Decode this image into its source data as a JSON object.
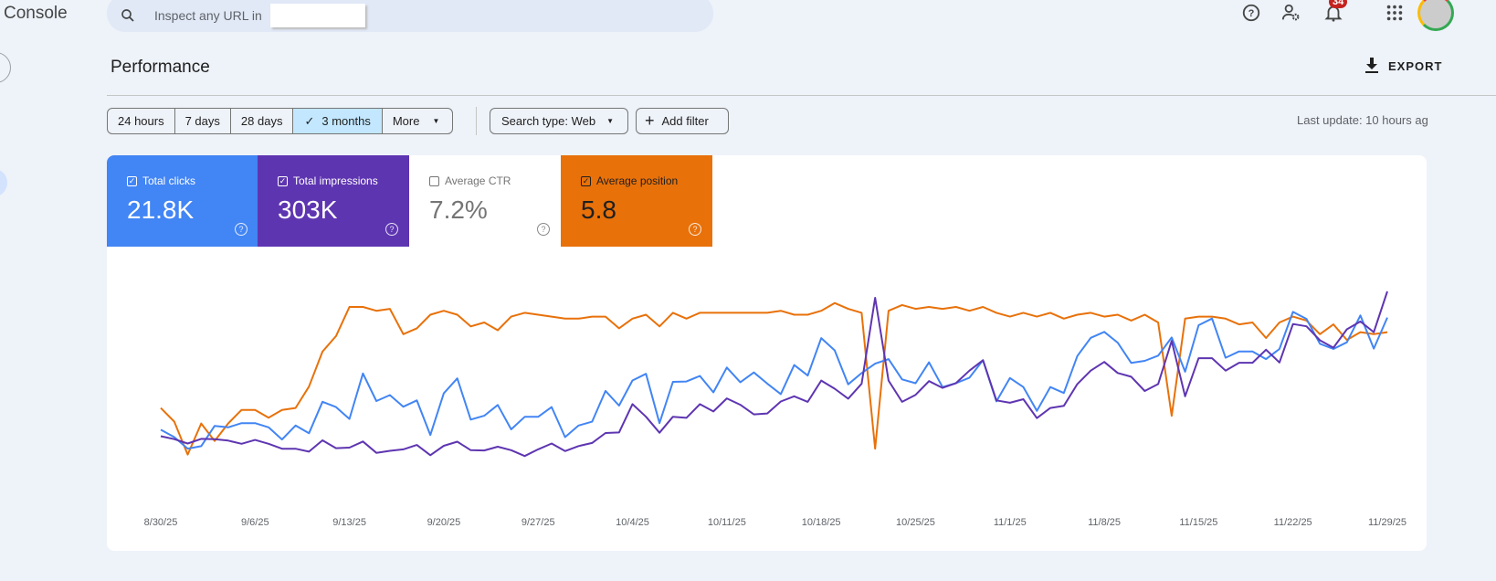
{
  "app": {
    "title": "Console"
  },
  "search": {
    "placeholder": "Inspect any URL in"
  },
  "header_icons": {
    "help": "help-icon",
    "users": "manage-users-icon",
    "notifications": "bell-icon",
    "notification_count": "34",
    "apps": "apps-grid-icon"
  },
  "page": {
    "title": "Performance",
    "export_label": "EXPORT"
  },
  "filters": {
    "ranges": [
      {
        "label": "24 hours",
        "selected": false
      },
      {
        "label": "7 days",
        "selected": false
      },
      {
        "label": "28 days",
        "selected": false
      },
      {
        "label": "3 months",
        "selected": true
      },
      {
        "label": "More",
        "selected": false
      }
    ],
    "search_type": "Search type: Web",
    "add_filter": "Add filter",
    "last_update": "Last update: 10 hours ag"
  },
  "metrics": [
    {
      "label": "Total clicks",
      "value": "21.8K",
      "checked": true,
      "color": "#4285f4"
    },
    {
      "label": "Total impressions",
      "value": "303K",
      "checked": true,
      "color": "#5e35b1"
    },
    {
      "label": "Average CTR",
      "value": "7.2%",
      "checked": false,
      "color": "#ffffff"
    },
    {
      "label": "Average position",
      "value": "5.8",
      "checked": true,
      "color": "#e8710a"
    }
  ],
  "chart_data": {
    "type": "line",
    "x_range": [
      "8/30/25",
      "11/29/25"
    ],
    "tick_labels": [
      "8/30/25",
      "9/6/25",
      "9/13/25",
      "9/20/25",
      "9/27/25",
      "10/4/25",
      "10/11/25",
      "10/18/25",
      "10/25/25",
      "11/1/25",
      "11/8/25",
      "11/15/25",
      "11/22/25",
      "11/29/25"
    ],
    "grid": false,
    "position_axis_inverted": true,
    "series": [
      {
        "key": "clicks",
        "color": "#4285f4",
        "values": [
          96,
          75,
          42,
          49,
          107,
          103,
          115,
          115,
          103,
          68,
          108,
          86,
          176,
          161,
          127,
          257,
          178,
          195,
          162,
          180,
          81,
          200,
          243,
          125,
          136,
          167,
          97,
          133,
          133,
          161,
          75,
          108,
          119,
          207,
          165,
          237,
          256,
          115,
          233,
          234,
          250,
          203,
          274,
          232,
          260,
          228,
          198,
          281,
          251,
          358,
          323,
          226,
          258,
          285,
          298,
          240,
          229,
          289,
          218,
          229,
          245,
          295,
          177,
          244,
          218,
          150,
          218,
          201,
          307,
          359,
          376,
          345,
          287,
          293,
          308,
          360,
          262,
          395,
          414,
          302,
          320,
          320,
          298,
          327,
          433,
          413,
          342,
          327,
          346,
          423,
          328,
          417
        ]
      },
      {
        "key": "impressions",
        "color": "#5e35b1",
        "values": [
          1886,
          1734,
          1504,
          1748,
          1734,
          1656,
          1486,
          1688,
          1486,
          1228,
          1228,
          1072,
          1670,
          1256,
          1288,
          1610,
          1012,
          1118,
          1196,
          1426,
          888,
          1380,
          1596,
          1150,
          1136,
          1334,
          1150,
          842,
          1196,
          1504,
          1104,
          1366,
          1532,
          2056,
          2084,
          3574,
          2912,
          2070,
          2912,
          2852,
          3574,
          3188,
          3878,
          3542,
          3036,
          3082,
          3712,
          3988,
          3694,
          4816,
          4384,
          3864,
          4646,
          9168,
          4816,
          3694,
          4062,
          4784,
          4430,
          4678,
          5336,
          5888,
          3772,
          3648,
          3832,
          2838,
          3372,
          3482,
          4632,
          5336,
          5796,
          5212,
          5014,
          4264,
          4632,
          6900,
          3988,
          5994,
          5994,
          5336,
          5750,
          5750,
          6440,
          5764,
          7788,
          7668,
          6932,
          6546,
          7512,
          7926,
          7360,
          9508
        ]
      },
      {
        "key": "position",
        "color": "#e8710a",
        "values": [
          9.7,
          10.4,
          12.1,
          10.5,
          11.4,
          10.5,
          9.8,
          9.8,
          10.2,
          9.8,
          9.7,
          8.6,
          6.8,
          6.0,
          4.5,
          4.5,
          4.7,
          4.6,
          5.9,
          5.6,
          4.9,
          4.7,
          4.9,
          5.5,
          5.3,
          5.7,
          5.0,
          4.8,
          4.9,
          5.0,
          5.1,
          5.1,
          5.0,
          5.0,
          5.6,
          5.1,
          4.9,
          5.5,
          4.8,
          5.1,
          4.8,
          4.8,
          4.8,
          4.8,
          4.8,
          4.8,
          4.7,
          4.9,
          4.9,
          4.7,
          4.3,
          4.6,
          4.8,
          11.8,
          4.7,
          4.4,
          4.6,
          4.5,
          4.6,
          4.5,
          4.7,
          4.5,
          4.8,
          5.0,
          4.8,
          5.0,
          4.8,
          5.1,
          4.9,
          4.8,
          5.0,
          4.9,
          5.2,
          4.9,
          5.3,
          10.1,
          5.1,
          5.0,
          5.0,
          5.1,
          5.4,
          5.3,
          6.1,
          5.3,
          5.0,
          5.2,
          5.9,
          5.4,
          6.2,
          5.8,
          5.9,
          5.8
        ]
      }
    ]
  }
}
